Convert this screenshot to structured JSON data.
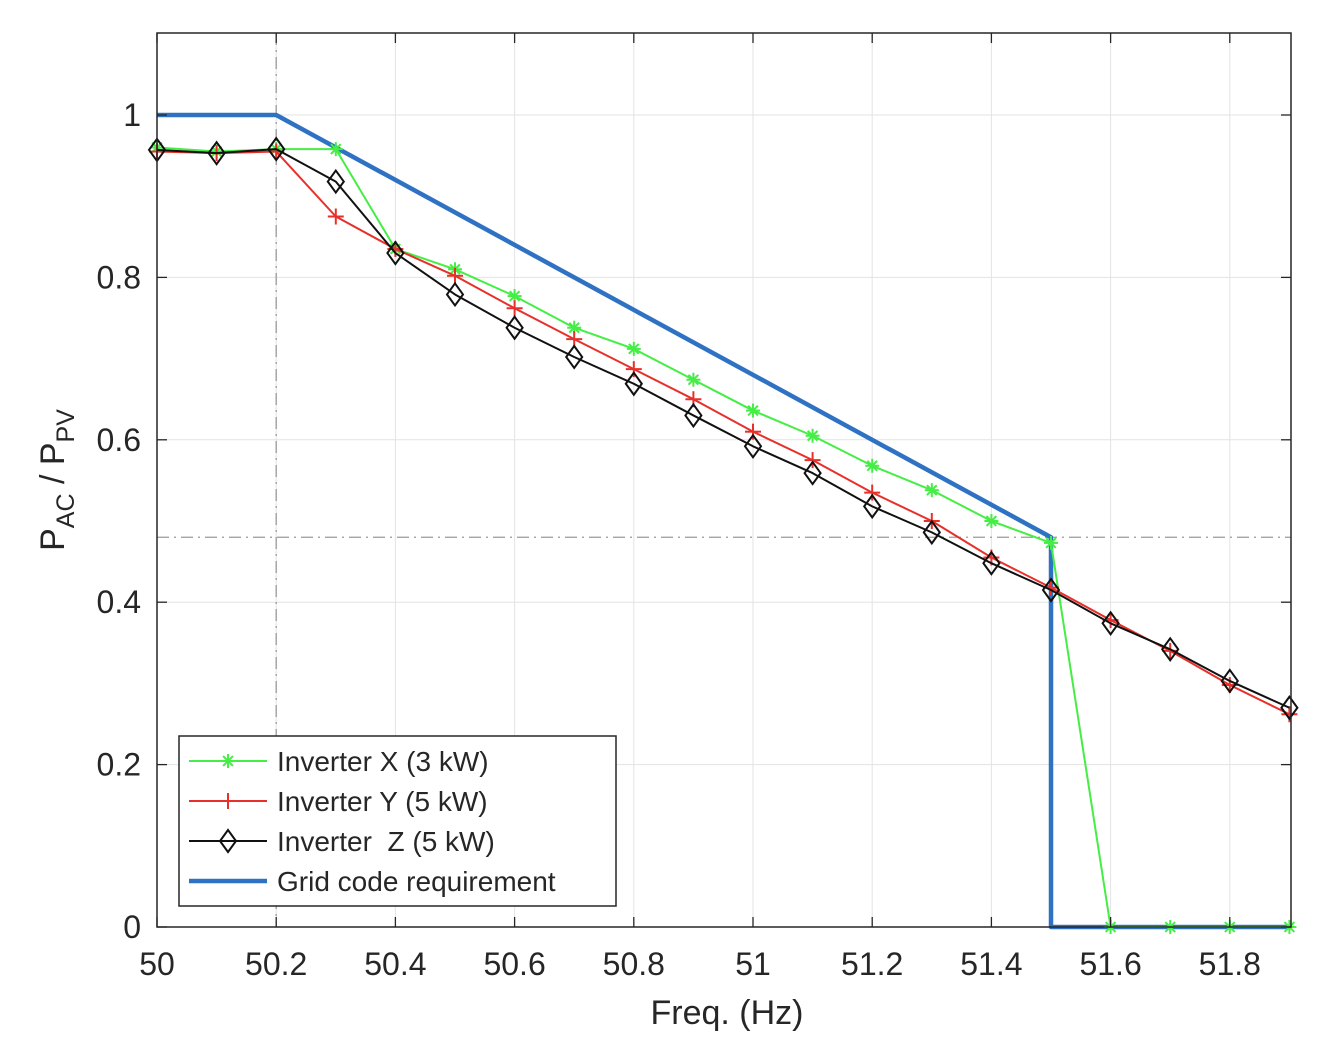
{
  "chart_data": {
    "type": "line",
    "title": "",
    "xlabel": "Freq. (Hz)",
    "ylabel": {
      "p": "P",
      "ac": "AC",
      "slash": " / P",
      "pv": "PV"
    },
    "xlim": [
      50,
      51.9
    ],
    "ylim": [
      0,
      1.1
    ],
    "grid": true,
    "x_ticks": [
      50,
      50.2,
      50.4,
      50.6,
      50.8,
      51,
      51.2,
      51.4,
      51.6,
      51.8
    ],
    "x_tick_labels": [
      "50",
      "50.2",
      "50.4",
      "50.6",
      "50.8",
      "51",
      "51.2",
      "51.4",
      "51.6",
      "51.8"
    ],
    "y_ticks": [
      0,
      0.2,
      0.4,
      0.6,
      0.8,
      1
    ],
    "y_tick_labels": [
      "0",
      "0.2",
      "0.4",
      "0.6",
      "0.8",
      "1"
    ],
    "reference_lines": [
      {
        "name": "vertical-reference-line",
        "orientation": "vertical",
        "value": 50.2,
        "color": "#9a9a9a"
      },
      {
        "name": "horizontal-reference-line",
        "orientation": "horizontal",
        "value": 0.48,
        "color": "#9a9a9a"
      }
    ],
    "legend_position": "bottom-left",
    "series": [
      {
        "name": "Inverter X (3 kW)",
        "key": "inverter-x",
        "color": "#44ee44",
        "marker": "asterisk",
        "x": [
          50,
          50.1,
          50.2,
          50.3,
          50.4,
          50.5,
          50.6,
          50.7,
          50.8,
          50.9,
          51,
          51.1,
          51.2,
          51.3,
          51.4,
          51.5,
          51.6,
          51.7,
          51.8,
          51.9
        ],
        "y": [
          0.96,
          0.955,
          0.958,
          0.958,
          0.835,
          0.81,
          0.777,
          0.738,
          0.712,
          0.674,
          0.636,
          0.605,
          0.568,
          0.538,
          0.5,
          0.473,
          0,
          0,
          0,
          0
        ]
      },
      {
        "name": "Inverter Y (5 kW)",
        "key": "inverter-y",
        "color": "#e8302a",
        "marker": "plus",
        "x": [
          50,
          50.1,
          50.2,
          50.3,
          50.4,
          50.5,
          50.6,
          50.7,
          50.8,
          50.9,
          51,
          51.1,
          51.2,
          51.3,
          51.4,
          51.5,
          51.6,
          51.7,
          51.8,
          51.9
        ],
        "y": [
          0.955,
          0.953,
          0.955,
          0.875,
          0.835,
          0.802,
          0.762,
          0.724,
          0.687,
          0.65,
          0.61,
          0.575,
          0.535,
          0.5,
          0.455,
          0.418,
          0.378,
          0.34,
          0.298,
          0.262
        ]
      },
      {
        "name": "Inverter  Z (5 kW)",
        "key": "inverter-z",
        "color": "#111111",
        "marker": "diamond",
        "x": [
          50,
          50.1,
          50.2,
          50.3,
          50.4,
          50.5,
          50.6,
          50.7,
          50.8,
          50.9,
          51,
          51.1,
          51.2,
          51.3,
          51.4,
          51.5,
          51.6,
          51.7,
          51.8,
          51.9
        ],
        "y": [
          0.957,
          0.953,
          0.958,
          0.918,
          0.83,
          0.779,
          0.738,
          0.702,
          0.669,
          0.63,
          0.592,
          0.559,
          0.518,
          0.486,
          0.448,
          0.415,
          0.374,
          0.342,
          0.303,
          0.27
        ]
      },
      {
        "name": "Grid code requirement",
        "key": "grid-code",
        "color": "#2f72c4",
        "marker": "none",
        "x": [
          50,
          50.2,
          51.5,
          51.5,
          51.9
        ],
        "y": [
          1.0,
          1.0,
          0.48,
          0,
          0
        ]
      }
    ]
  }
}
